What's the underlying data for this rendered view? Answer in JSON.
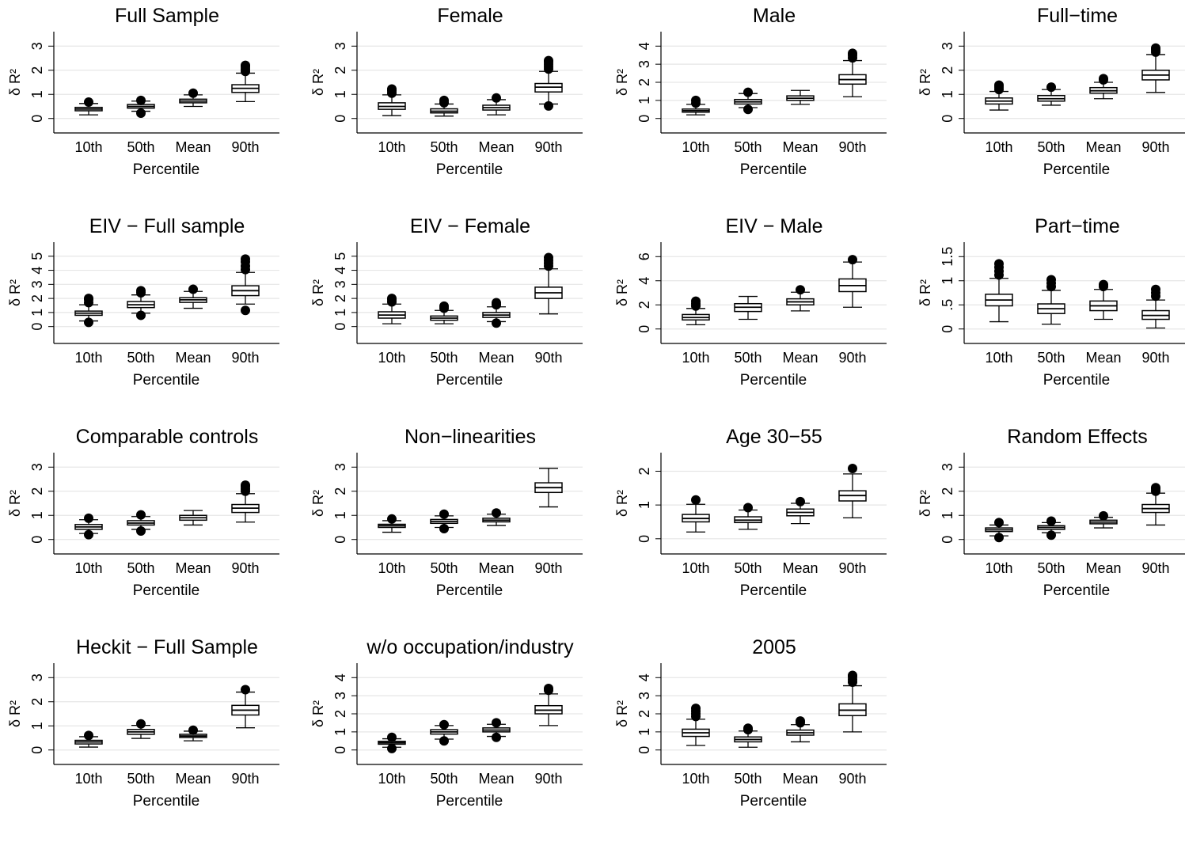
{
  "chart_data": [
    {
      "type": "box",
      "title": "Full Sample",
      "xlabel": "Percentile",
      "ylabel": "δ R²",
      "categories": [
        "10th",
        "50th",
        "Mean",
        "90th"
      ],
      "yticks": [
        0,
        1,
        2,
        3
      ],
      "ylim": [
        -0.6,
        3.6
      ],
      "grid": true,
      "boxes": [
        {
          "q1": 0.32,
          "median": 0.39,
          "q3": 0.46,
          "whisker_low": 0.15,
          "whisker_high": 0.62,
          "outliers": [
            0.68
          ]
        },
        {
          "q1": 0.43,
          "median": 0.5,
          "q3": 0.58,
          "whisker_low": 0.3,
          "whisker_high": 0.72,
          "outliers": [
            0.22,
            0.75
          ]
        },
        {
          "q1": 0.65,
          "median": 0.72,
          "q3": 0.8,
          "whisker_low": 0.5,
          "whisker_high": 0.98,
          "outliers": [
            1.05
          ]
        },
        {
          "q1": 1.08,
          "median": 1.25,
          "q3": 1.4,
          "whisker_low": 0.7,
          "whisker_high": 1.88,
          "outliers": [
            1.95,
            2.05,
            2.15,
            2.2
          ]
        }
      ]
    },
    {
      "type": "box",
      "title": "Female",
      "xlabel": "Percentile",
      "ylabel": "δ R²",
      "categories": [
        "10th",
        "50th",
        "Mean",
        "90th"
      ],
      "yticks": [
        0,
        1,
        2,
        3
      ],
      "ylim": [
        -0.6,
        3.6
      ],
      "grid": true,
      "boxes": [
        {
          "q1": 0.38,
          "median": 0.5,
          "q3": 0.65,
          "whisker_low": 0.12,
          "whisker_high": 0.98,
          "outliers": [
            1.05,
            1.15,
            1.22
          ]
        },
        {
          "q1": 0.23,
          "median": 0.3,
          "q3": 0.4,
          "whisker_low": 0.1,
          "whisker_high": 0.6,
          "outliers": [
            0.65,
            0.75
          ]
        },
        {
          "q1": 0.35,
          "median": 0.45,
          "q3": 0.55,
          "whisker_low": 0.15,
          "whisker_high": 0.78,
          "outliers": [
            0.85
          ]
        },
        {
          "q1": 1.1,
          "median": 1.3,
          "q3": 1.45,
          "whisker_low": 0.6,
          "whisker_high": 1.95,
          "outliers": [
            0.52,
            2.05,
            2.15,
            2.25,
            2.35,
            2.4
          ]
        }
      ]
    },
    {
      "type": "box",
      "title": "Male",
      "xlabel": "Percentile",
      "ylabel": "δ R²",
      "categories": [
        "10th",
        "50th",
        "Mean",
        "90th"
      ],
      "yticks": [
        0,
        1,
        2,
        3,
        4
      ],
      "ylim": [
        -0.8,
        4.8
      ],
      "grid": true,
      "boxes": [
        {
          "q1": 0.35,
          "median": 0.43,
          "q3": 0.52,
          "whisker_low": 0.2,
          "whisker_high": 0.78,
          "outliers": [
            0.85,
            1.0
          ]
        },
        {
          "q1": 0.8,
          "median": 0.92,
          "q3": 1.05,
          "whisker_low": 0.6,
          "whisker_high": 1.38,
          "outliers": [
            0.5,
            1.45
          ]
        },
        {
          "q1": 1.0,
          "median": 1.12,
          "q3": 1.25,
          "whisker_low": 0.78,
          "whisker_high": 1.55,
          "outliers": []
        },
        {
          "q1": 1.9,
          "median": 2.15,
          "q3": 2.42,
          "whisker_low": 1.2,
          "whisker_high": 3.2,
          "outliers": [
            3.35,
            3.5,
            3.6
          ]
        }
      ]
    },
    {
      "type": "box",
      "title": "Full−time",
      "xlabel": "Percentile",
      "ylabel": "δ R²",
      "categories": [
        "10th",
        "50th",
        "Mean",
        "90th"
      ],
      "yticks": [
        0,
        1,
        2,
        3
      ],
      "ylim": [
        -0.6,
        3.6
      ],
      "grid": true,
      "boxes": [
        {
          "q1": 0.6,
          "median": 0.72,
          "q3": 0.85,
          "whisker_low": 0.35,
          "whisker_high": 1.12,
          "outliers": [
            1.2,
            1.3,
            1.38
          ]
        },
        {
          "q1": 0.72,
          "median": 0.82,
          "q3": 0.95,
          "whisker_low": 0.55,
          "whisker_high": 1.2,
          "outliers": [
            1.3
          ]
        },
        {
          "q1": 1.05,
          "median": 1.15,
          "q3": 1.28,
          "whisker_low": 0.82,
          "whisker_high": 1.5,
          "outliers": [
            1.6,
            1.65
          ]
        },
        {
          "q1": 1.6,
          "median": 1.8,
          "q3": 2.0,
          "whisker_low": 1.08,
          "whisker_high": 2.65,
          "outliers": [
            2.75,
            2.85,
            2.92
          ]
        }
      ]
    },
    {
      "type": "box",
      "title": "EIV − Full sample",
      "xlabel": "Percentile",
      "ylabel": "δ R²",
      "categories": [
        "10th",
        "50th",
        "Mean",
        "90th"
      ],
      "yticks": [
        0,
        1,
        2,
        3,
        4,
        5
      ],
      "ylim": [
        -1.2,
        6.0
      ],
      "grid": true,
      "boxes": [
        {
          "q1": 0.8,
          "median": 0.95,
          "q3": 1.1,
          "whisker_low": 0.4,
          "whisker_high": 1.55,
          "outliers": [
            0.3,
            1.7,
            1.9,
            2.0
          ]
        },
        {
          "q1": 1.35,
          "median": 1.55,
          "q3": 1.78,
          "whisker_low": 0.95,
          "whisker_high": 2.25,
          "outliers": [
            0.8,
            2.4,
            2.55
          ]
        },
        {
          "q1": 1.72,
          "median": 1.9,
          "q3": 2.05,
          "whisker_low": 1.3,
          "whisker_high": 2.5,
          "outliers": [
            2.65
          ]
        },
        {
          "q1": 2.2,
          "median": 2.55,
          "q3": 2.9,
          "whisker_low": 1.6,
          "whisker_high": 3.85,
          "outliers": [
            1.15,
            4.05,
            4.3,
            4.6,
            4.8
          ]
        }
      ]
    },
    {
      "type": "box",
      "title": "EIV − Female",
      "xlabel": "Percentile",
      "ylabel": "δ R²",
      "categories": [
        "10th",
        "50th",
        "Mean",
        "90th"
      ],
      "yticks": [
        0,
        1,
        2,
        3,
        4,
        5
      ],
      "ylim": [
        -1.2,
        6.0
      ],
      "grid": true,
      "boxes": [
        {
          "q1": 0.6,
          "median": 0.82,
          "q3": 1.05,
          "whisker_low": 0.2,
          "whisker_high": 1.6,
          "outliers": [
            1.75,
            1.9,
            2.0
          ]
        },
        {
          "q1": 0.45,
          "median": 0.6,
          "q3": 0.75,
          "whisker_low": 0.2,
          "whisker_high": 1.15,
          "outliers": [
            1.3,
            1.45
          ]
        },
        {
          "q1": 0.65,
          "median": 0.82,
          "q3": 1.0,
          "whisker_low": 0.35,
          "whisker_high": 1.4,
          "outliers": [
            0.25,
            1.55,
            1.7
          ]
        },
        {
          "q1": 2.0,
          "median": 2.4,
          "q3": 2.8,
          "whisker_low": 0.9,
          "whisker_high": 4.1,
          "outliers": [
            4.3,
            4.5,
            4.7,
            4.9
          ]
        }
      ]
    },
    {
      "type": "box",
      "title": "EIV − Male",
      "xlabel": "Percentile",
      "ylabel": "δ R²",
      "categories": [
        "10th",
        "50th",
        "Mean",
        "90th"
      ],
      "yticks": [
        0,
        2,
        4,
        6
      ],
      "ylim": [
        -1.2,
        7.2
      ],
      "grid": true,
      "boxes": [
        {
          "q1": 0.75,
          "median": 0.95,
          "q3": 1.2,
          "whisker_low": 0.35,
          "whisker_high": 1.7,
          "outliers": [
            1.9,
            2.1,
            2.3
          ]
        },
        {
          "q1": 1.45,
          "median": 1.8,
          "q3": 2.1,
          "whisker_low": 0.8,
          "whisker_high": 2.7,
          "outliers": []
        },
        {
          "q1": 2.0,
          "median": 2.25,
          "q3": 2.5,
          "whisker_low": 1.5,
          "whisker_high": 3.05,
          "outliers": [
            3.25
          ]
        },
        {
          "q1": 3.1,
          "median": 3.6,
          "q3": 4.15,
          "whisker_low": 1.8,
          "whisker_high": 5.55,
          "outliers": [
            5.75
          ]
        }
      ]
    },
    {
      "type": "box",
      "title": "Part−time",
      "xlabel": "Percentile",
      "ylabel": "δ R²",
      "categories": [
        "10th",
        "50th",
        "Mean",
        "90th"
      ],
      "yticks": [
        0,
        0.5,
        1,
        1.5
      ],
      "ytick_labels": [
        "0",
        ".5",
        "1",
        "1.5"
      ],
      "ylim": [
        -0.3,
        1.8
      ],
      "grid": true,
      "boxes": [
        {
          "q1": 0.48,
          "median": 0.6,
          "q3": 0.72,
          "whisker_low": 0.15,
          "whisker_high": 1.05,
          "outliers": [
            1.12,
            1.2,
            1.28,
            1.35
          ]
        },
        {
          "q1": 0.32,
          "median": 0.42,
          "q3": 0.52,
          "whisker_low": 0.1,
          "whisker_high": 0.8,
          "outliers": [
            0.88,
            0.95,
            1.02
          ]
        },
        {
          "q1": 0.38,
          "median": 0.48,
          "q3": 0.58,
          "whisker_low": 0.2,
          "whisker_high": 0.82,
          "outliers": [
            0.88,
            0.92
          ]
        },
        {
          "q1": 0.2,
          "median": 0.28,
          "q3": 0.38,
          "whisker_low": 0.02,
          "whisker_high": 0.6,
          "outliers": [
            0.68,
            0.75,
            0.82
          ]
        }
      ]
    },
    {
      "type": "box",
      "title": "Comparable controls",
      "xlabel": "Percentile",
      "ylabel": "δ R²",
      "categories": [
        "10th",
        "50th",
        "Mean",
        "90th"
      ],
      "yticks": [
        0,
        1,
        2,
        3
      ],
      "ylim": [
        -0.6,
        3.6
      ],
      "grid": true,
      "boxes": [
        {
          "q1": 0.42,
          "median": 0.52,
          "q3": 0.62,
          "whisker_low": 0.25,
          "whisker_high": 0.82,
          "outliers": [
            0.2,
            0.88
          ]
        },
        {
          "q1": 0.6,
          "median": 0.68,
          "q3": 0.78,
          "whisker_low": 0.42,
          "whisker_high": 0.95,
          "outliers": [
            0.35,
            1.02
          ]
        },
        {
          "q1": 0.8,
          "median": 0.9,
          "q3": 1.0,
          "whisker_low": 0.6,
          "whisker_high": 1.2,
          "outliers": []
        },
        {
          "q1": 1.12,
          "median": 1.3,
          "q3": 1.45,
          "whisker_low": 0.72,
          "whisker_high": 1.9,
          "outliers": [
            2.0,
            2.1,
            2.2,
            2.25
          ]
        }
      ]
    },
    {
      "type": "box",
      "title": "Non−linearities",
      "xlabel": "Percentile",
      "ylabel": "δ R²",
      "categories": [
        "10th",
        "50th",
        "Mean",
        "90th"
      ],
      "yticks": [
        0,
        1,
        2,
        3
      ],
      "ylim": [
        -0.6,
        3.6
      ],
      "grid": true,
      "boxes": [
        {
          "q1": 0.5,
          "median": 0.57,
          "q3": 0.63,
          "whisker_low": 0.3,
          "whisker_high": 0.78,
          "outliers": [
            0.85
          ]
        },
        {
          "q1": 0.67,
          "median": 0.75,
          "q3": 0.83,
          "whisker_low": 0.5,
          "whisker_high": 0.98,
          "outliers": [
            0.45,
            1.05
          ]
        },
        {
          "q1": 0.73,
          "median": 0.8,
          "q3": 0.88,
          "whisker_low": 0.58,
          "whisker_high": 1.05,
          "outliers": [
            1.1
          ]
        },
        {
          "q1": 1.95,
          "median": 2.15,
          "q3": 2.35,
          "whisker_low": 1.35,
          "whisker_high": 2.95,
          "outliers": []
        }
      ]
    },
    {
      "type": "box",
      "title": "Age 30−55",
      "xlabel": "Percentile",
      "ylabel": "δ R²",
      "categories": [
        "10th",
        "50th",
        "Mean",
        "90th"
      ],
      "yticks": [
        0,
        1,
        2
      ],
      "ylim": [
        -0.45,
        2.55
      ],
      "grid": true,
      "boxes": [
        {
          "q1": 0.5,
          "median": 0.6,
          "q3": 0.72,
          "whisker_low": 0.2,
          "whisker_high": 1.02,
          "outliers": [
            1.15
          ]
        },
        {
          "q1": 0.48,
          "median": 0.55,
          "q3": 0.65,
          "whisker_low": 0.28,
          "whisker_high": 0.85,
          "outliers": [
            0.92
          ]
        },
        {
          "q1": 0.68,
          "median": 0.78,
          "q3": 0.88,
          "whisker_low": 0.45,
          "whisker_high": 1.05,
          "outliers": [
            1.1
          ]
        },
        {
          "q1": 1.12,
          "median": 1.28,
          "q3": 1.42,
          "whisker_low": 0.62,
          "whisker_high": 1.92,
          "outliers": [
            2.08
          ]
        }
      ]
    },
    {
      "type": "box",
      "title": "Random Effects",
      "xlabel": "Percentile",
      "ylabel": "δ R²",
      "categories": [
        "10th",
        "50th",
        "Mean",
        "90th"
      ],
      "yticks": [
        0,
        1,
        2,
        3
      ],
      "ylim": [
        -0.6,
        3.6
      ],
      "grid": true,
      "boxes": [
        {
          "q1": 0.33,
          "median": 0.4,
          "q3": 0.48,
          "whisker_low": 0.15,
          "whisker_high": 0.6,
          "outliers": [
            0.08,
            0.7
          ]
        },
        {
          "q1": 0.42,
          "median": 0.5,
          "q3": 0.57,
          "whisker_low": 0.28,
          "whisker_high": 0.7,
          "outliers": [
            0.18,
            0.76
          ]
        },
        {
          "q1": 0.65,
          "median": 0.72,
          "q3": 0.8,
          "whisker_low": 0.48,
          "whisker_high": 0.92,
          "outliers": [
            0.98
          ]
        },
        {
          "q1": 1.12,
          "median": 1.28,
          "q3": 1.45,
          "whisker_low": 0.6,
          "whisker_high": 1.92,
          "outliers": [
            2.0,
            2.1,
            2.15
          ]
        }
      ]
    },
    {
      "type": "box",
      "title": "Heckit − Full Sample",
      "xlabel": "Percentile",
      "ylabel": "δ R²",
      "categories": [
        "10th",
        "50th",
        "Mean",
        "90th"
      ],
      "yticks": [
        0,
        1,
        2,
        3
      ],
      "ylim": [
        -0.6,
        3.6
      ],
      "grid": true,
      "boxes": [
        {
          "q1": 0.25,
          "median": 0.33,
          "q3": 0.4,
          "whisker_low": 0.12,
          "whisker_high": 0.55,
          "outliers": [
            0.6
          ]
        },
        {
          "q1": 0.65,
          "median": 0.75,
          "q3": 0.85,
          "whisker_low": 0.48,
          "whisker_high": 1.02,
          "outliers": [
            1.08
          ]
        },
        {
          "q1": 0.52,
          "median": 0.58,
          "q3": 0.65,
          "whisker_low": 0.38,
          "whisker_high": 0.78,
          "outliers": [
            0.82
          ]
        },
        {
          "q1": 1.45,
          "median": 1.65,
          "q3": 1.85,
          "whisker_low": 0.92,
          "whisker_high": 2.4,
          "outliers": [
            2.5
          ]
        }
      ]
    },
    {
      "type": "box",
      "title": "w/o occupation/industry",
      "xlabel": "Percentile",
      "ylabel": "δ R²",
      "categories": [
        "10th",
        "50th",
        "Mean",
        "90th"
      ],
      "yticks": [
        0,
        1,
        2,
        3,
        4
      ],
      "ylim": [
        -0.8,
        4.8
      ],
      "grid": true,
      "boxes": [
        {
          "q1": 0.32,
          "median": 0.4,
          "q3": 0.48,
          "whisker_low": 0.15,
          "whisker_high": 0.62,
          "outliers": [
            0.08,
            0.7
          ]
        },
        {
          "q1": 0.88,
          "median": 1.0,
          "q3": 1.12,
          "whisker_low": 0.6,
          "whisker_high": 1.35,
          "outliers": [
            0.5,
            1.4
          ]
        },
        {
          "q1": 1.0,
          "median": 1.1,
          "q3": 1.22,
          "whisker_low": 0.75,
          "whisker_high": 1.42,
          "outliers": [
            0.7,
            1.5
          ]
        },
        {
          "q1": 2.0,
          "median": 2.2,
          "q3": 2.45,
          "whisker_low": 1.35,
          "whisker_high": 3.1,
          "outliers": [
            3.3,
            3.4
          ]
        }
      ]
    },
    {
      "type": "box",
      "title": "2005",
      "xlabel": "Percentile",
      "ylabel": "δ R²",
      "categories": [
        "10th",
        "50th",
        "Mean",
        "90th"
      ],
      "yticks": [
        0,
        1,
        2,
        3,
        4
      ],
      "ylim": [
        -0.8,
        4.8
      ],
      "grid": true,
      "boxes": [
        {
          "q1": 0.75,
          "median": 0.95,
          "q3": 1.15,
          "whisker_low": 0.25,
          "whisker_high": 1.7,
          "outliers": [
            1.85,
            2.0,
            2.15,
            2.3
          ]
        },
        {
          "q1": 0.45,
          "median": 0.58,
          "q3": 0.72,
          "whisker_low": 0.15,
          "whisker_high": 1.05,
          "outliers": [
            1.12,
            1.2
          ]
        },
        {
          "q1": 0.82,
          "median": 0.95,
          "q3": 1.1,
          "whisker_low": 0.45,
          "whisker_high": 1.4,
          "outliers": [
            1.5,
            1.6
          ]
        },
        {
          "q1": 1.9,
          "median": 2.2,
          "q3": 2.55,
          "whisker_low": 1.0,
          "whisker_high": 3.55,
          "outliers": [
            3.75,
            3.9,
            4.05,
            4.12
          ]
        }
      ]
    }
  ]
}
